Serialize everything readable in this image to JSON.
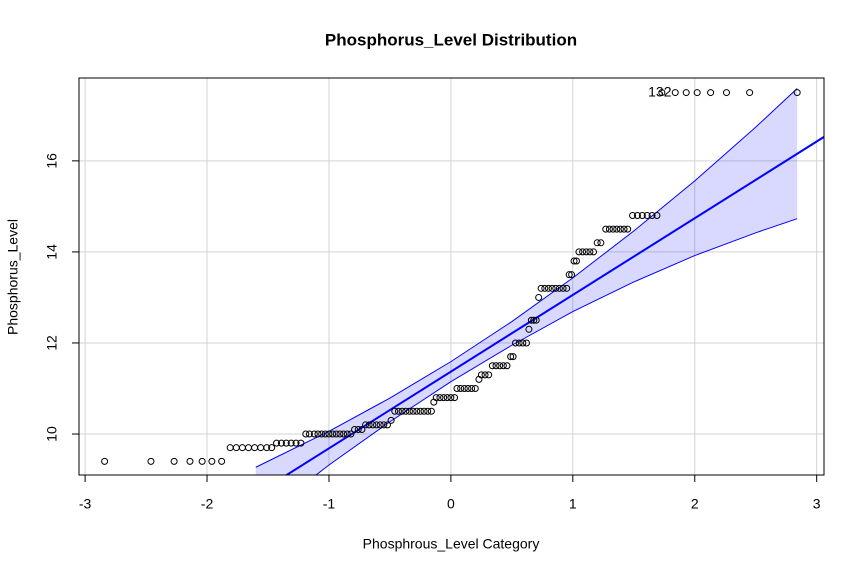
{
  "chart_data": {
    "type": "scatter",
    "title": "Phosphorus_Level Distribution",
    "xlabel": "Phosphrous_Level Category",
    "ylabel": "Phosphorus_Level",
    "xlim": [
      -3.05,
      3.06
    ],
    "ylim": [
      9.1,
      17.82
    ],
    "xticks": [
      -3,
      -2,
      -1,
      0,
      1,
      2,
      3
    ],
    "yticks": [
      10,
      12,
      14,
      16
    ],
    "grid": true,
    "point_color": "#000000",
    "line_color": "#0000ff",
    "x": [
      -2.84,
      -2.46,
      -2.27,
      -2.14,
      -2.04,
      -1.96,
      -1.88,
      -1.81,
      -1.76,
      -1.71,
      -1.66,
      -1.61,
      -1.56,
      -1.51,
      -1.47,
      -1.43,
      -1.39,
      -1.35,
      -1.31,
      -1.27,
      -1.23,
      -1.19,
      -1.16,
      -1.12,
      -1.09,
      -1.06,
      -1.03,
      -1.0,
      -0.97,
      -0.94,
      -0.91,
      -0.88,
      -0.85,
      -0.82,
      -0.79,
      -0.76,
      -0.73,
      -0.7,
      -0.67,
      -0.64,
      -0.61,
      -0.58,
      -0.55,
      -0.52,
      -0.49,
      -0.46,
      -0.43,
      -0.4,
      -0.37,
      -0.34,
      -0.31,
      -0.28,
      -0.25,
      -0.22,
      -0.19,
      -0.16,
      -0.14,
      -0.12,
      -0.09,
      -0.06,
      -0.03,
      0,
      0.03,
      0.05,
      0.08,
      0.11,
      0.14,
      0.17,
      0.2,
      0.23,
      0.25,
      0.28,
      0.31,
      0.34,
      0.37,
      0.4,
      0.43,
      0.46,
      0.49,
      0.51,
      0.53,
      0.56,
      0.59,
      0.62,
      0.64,
      0.66,
      0.68,
      0.7,
      0.72,
      0.74,
      0.77,
      0.8,
      0.83,
      0.86,
      0.89,
      0.92,
      0.95,
      0.97,
      0.99,
      1.01,
      1.03,
      1.05,
      1.08,
      1.11,
      1.14,
      1.17,
      1.2,
      1.23,
      1.27,
      1.3,
      1.33,
      1.36,
      1.39,
      1.42,
      1.45,
      1.49,
      1.53,
      1.57,
      1.61,
      1.65,
      1.69,
      1.73,
      1.84,
      1.93,
      2.02,
      2.13,
      2.26,
      2.45,
      2.84
    ],
    "values": [
      9.4,
      9.4,
      9.4,
      9.4,
      9.4,
      9.4,
      9.4,
      9.7,
      9.7,
      9.7,
      9.7,
      9.7,
      9.7,
      9.7,
      9.7,
      9.8,
      9.8,
      9.8,
      9.8,
      9.8,
      9.8,
      10,
      10,
      10,
      10,
      10,
      10,
      10,
      10,
      10,
      10,
      10,
      10,
      10,
      10.1,
      10.1,
      10.1,
      10.2,
      10.2,
      10.2,
      10.2,
      10.2,
      10.2,
      10.2,
      10.3,
      10.5,
      10.5,
      10.5,
      10.5,
      10.5,
      10.5,
      10.5,
      10.5,
      10.5,
      10.5,
      10.5,
      10.7,
      10.8,
      10.8,
      10.8,
      10.8,
      10.8,
      10.8,
      11,
      11,
      11,
      11,
      11,
      11,
      11.2,
      11.3,
      11.3,
      11.3,
      11.5,
      11.5,
      11.5,
      11.5,
      11.5,
      11.7,
      11.7,
      12,
      12,
      12,
      12,
      12.3,
      12.5,
      12.5,
      12.5,
      13,
      13.2,
      13.2,
      13.2,
      13.2,
      13.2,
      13.2,
      13.2,
      13.2,
      13.5,
      13.5,
      13.8,
      13.8,
      14,
      14,
      14,
      14,
      14,
      14.2,
      14.2,
      14.5,
      14.5,
      14.5,
      14.5,
      14.5,
      14.5,
      14.5,
      14.8,
      14.8,
      14.8,
      14.8,
      14.8,
      14.8,
      17.5,
      17.5,
      17.5,
      17.5,
      17.5,
      17.5,
      17.5,
      17.5
    ],
    "reference_line": {
      "intercept": 11.37,
      "slope": 1.685
    },
    "band": {
      "x": [
        -1.6,
        -1.0,
        -0.5,
        0,
        0.5,
        1.0,
        1.5,
        2.0,
        2.5,
        2.84
      ],
      "upper": [
        9.27,
        10.06,
        10.79,
        11.59,
        12.47,
        13.43,
        14.46,
        15.56,
        16.74,
        17.59
      ],
      "lower": [
        8.07,
        9.32,
        10.27,
        11.15,
        11.95,
        12.69,
        13.34,
        13.92,
        14.42,
        14.73
      ]
    },
    "annotation": {
      "text": "132",
      "x": 1.73,
      "y": 17.5
    }
  }
}
